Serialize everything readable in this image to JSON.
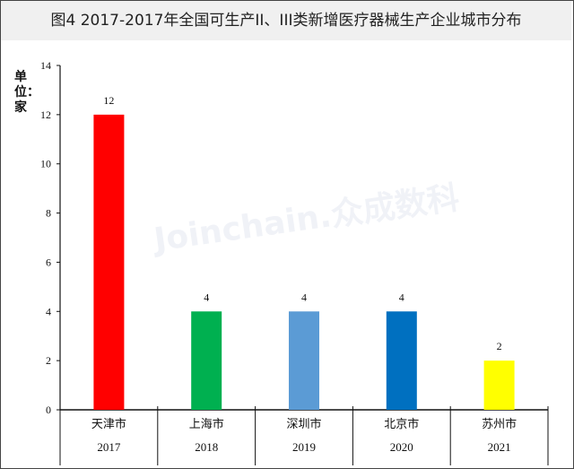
{
  "chart_data": {
    "type": "bar",
    "title": "图4  2017-2017年全国可生产II、III类新增医疗器械生产企业城市分布",
    "ylabel": "单位：家",
    "ylim": [
      0,
      14
    ],
    "yticks": [
      0,
      2,
      4,
      6,
      8,
      10,
      12,
      14
    ],
    "categories": [
      "天津市",
      "上海市",
      "深圳市",
      "北京市",
      "苏州市"
    ],
    "years": [
      "2017",
      "2018",
      "2019",
      "2020",
      "2021"
    ],
    "values": [
      12,
      4,
      4,
      4,
      2
    ],
    "colors": [
      "#ff0000",
      "#00b050",
      "#5b9bd5",
      "#0070c0",
      "#ffff00"
    ],
    "watermark": "Joinchain.众成数科"
  }
}
